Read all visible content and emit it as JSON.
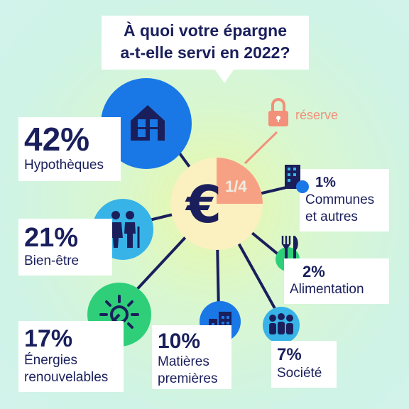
{
  "title": {
    "line1": "À quoi votre épargne",
    "line2": "a-t-elle servi en 2022?"
  },
  "center": {
    "fraction": "1/4",
    "currency_symbol": "€",
    "reserve_label": "réserve"
  },
  "items": [
    {
      "id": "hypotheques",
      "percent": "42%",
      "label_lines": [
        "Hypothèques"
      ],
      "icon": "house-icon",
      "color": "#1a78e6"
    },
    {
      "id": "bien-etre",
      "percent": "21%",
      "label_lines": [
        "Bien-être"
      ],
      "icon": "elderly-couple-icon",
      "color": "#37b3e8"
    },
    {
      "id": "energies",
      "percent": "17%",
      "label_lines": [
        "Énergies",
        "renouvelables"
      ],
      "icon": "solar-plug-icon",
      "color": "#2fcf7a"
    },
    {
      "id": "matieres",
      "percent": "10%",
      "label_lines": [
        "Matières",
        "premières"
      ],
      "icon": "factory-icon",
      "color": "#1a78e6"
    },
    {
      "id": "societe",
      "percent": "7%",
      "label_lines": [
        "Société"
      ],
      "icon": "people-group-icon",
      "color": "#37b3e8"
    },
    {
      "id": "alimentation",
      "percent": "2%",
      "label_lines": [
        "Alimentation"
      ],
      "icon": "cutlery-icon",
      "color": "#2fcf7a"
    },
    {
      "id": "communes",
      "percent": "1%",
      "label_lines": [
        "Communes",
        "et autres"
      ],
      "icon": "building-icon",
      "color": "#1a78e6"
    }
  ],
  "colors": {
    "navy": "#1a1f5c",
    "center_fill": "#fbf0c0",
    "quarter_fill": "#f7a184",
    "lock": "#f2907a"
  }
}
